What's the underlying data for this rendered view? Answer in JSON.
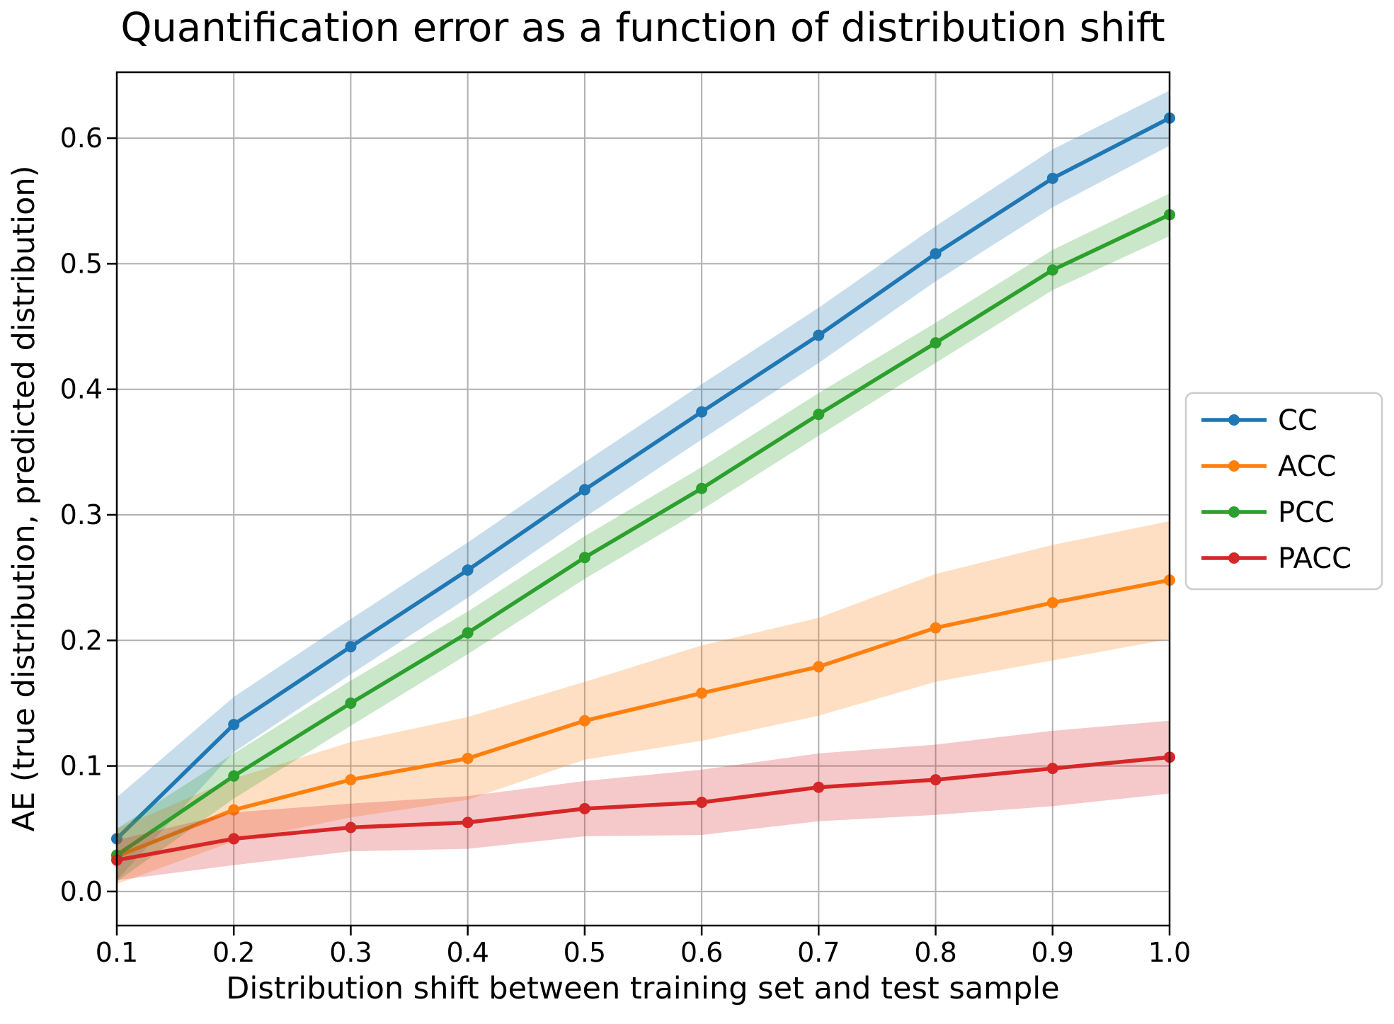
{
  "title": "Quantification error as a function of distribution shift",
  "xlabel": "Distribution shift between training set and test sample",
  "ylabel": "AE (true distribution, predicted distribution)",
  "legend": {
    "position": "right",
    "labels": [
      "CC",
      "ACC",
      "PCC",
      "PACC"
    ]
  },
  "colors": {
    "cc": "#1f77b4",
    "acc": "#ff7f0e",
    "pcc": "#2ca02c",
    "pacc": "#d62728",
    "grid": "#b0b0b0",
    "spine": "#000000",
    "legend_border": "#cccccc"
  },
  "chart_data": {
    "type": "line",
    "x": [
      0.1,
      0.2,
      0.3,
      0.4,
      0.5,
      0.6,
      0.7,
      0.8,
      0.9,
      1.0
    ],
    "xtick_labels": [
      "0.1",
      "0.2",
      "0.3",
      "0.4",
      "0.5",
      "0.6",
      "0.7",
      "0.8",
      "0.9",
      "1.0"
    ],
    "yticks": [
      0.0,
      0.1,
      0.2,
      0.3,
      0.4,
      0.5,
      0.6
    ],
    "ytick_labels": [
      "0.0",
      "0.1",
      "0.2",
      "0.3",
      "0.4",
      "0.5",
      "0.6"
    ],
    "xlim": [
      0.1,
      1.0
    ],
    "ylim": [
      -0.027,
      0.652
    ],
    "grid": true,
    "legend_position": "right",
    "series": [
      {
        "name": "CC",
        "color": "#1f77b4",
        "values": [
          0.042,
          0.133,
          0.195,
          0.256,
          0.32,
          0.382,
          0.443,
          0.508,
          0.568,
          0.616
        ],
        "band_lo": [
          0.009,
          0.111,
          0.173,
          0.234,
          0.298,
          0.36,
          0.421,
          0.486,
          0.545,
          0.594
        ],
        "band_hi": [
          0.075,
          0.155,
          0.217,
          0.278,
          0.342,
          0.404,
          0.465,
          0.53,
          0.591,
          0.638
        ]
      },
      {
        "name": "ACC",
        "color": "#ff7f0e",
        "values": [
          0.028,
          0.065,
          0.089,
          0.106,
          0.136,
          0.158,
          0.179,
          0.21,
          0.23,
          0.248
        ],
        "band_lo": [
          0.006,
          0.04,
          0.059,
          0.073,
          0.105,
          0.12,
          0.14,
          0.167,
          0.184,
          0.201
        ],
        "band_hi": [
          0.05,
          0.09,
          0.119,
          0.139,
          0.167,
          0.196,
          0.218,
          0.253,
          0.276,
          0.295
        ]
      },
      {
        "name": "PCC",
        "color": "#2ca02c",
        "values": [
          0.029,
          0.092,
          0.15,
          0.206,
          0.266,
          0.321,
          0.38,
          0.437,
          0.495,
          0.539
        ],
        "band_lo": [
          0.008,
          0.074,
          0.132,
          0.189,
          0.249,
          0.304,
          0.363,
          0.421,
          0.479,
          0.522
        ],
        "band_hi": [
          0.05,
          0.11,
          0.168,
          0.223,
          0.283,
          0.338,
          0.397,
          0.453,
          0.511,
          0.556
        ]
      },
      {
        "name": "PACC",
        "color": "#d62728",
        "values": [
          0.025,
          0.042,
          0.051,
          0.055,
          0.066,
          0.071,
          0.083,
          0.089,
          0.098,
          0.107
        ],
        "band_lo": [
          0.009,
          0.021,
          0.032,
          0.034,
          0.044,
          0.045,
          0.056,
          0.061,
          0.068,
          0.078
        ],
        "band_hi": [
          0.041,
          0.063,
          0.07,
          0.076,
          0.088,
          0.097,
          0.11,
          0.117,
          0.128,
          0.136
        ]
      }
    ]
  }
}
